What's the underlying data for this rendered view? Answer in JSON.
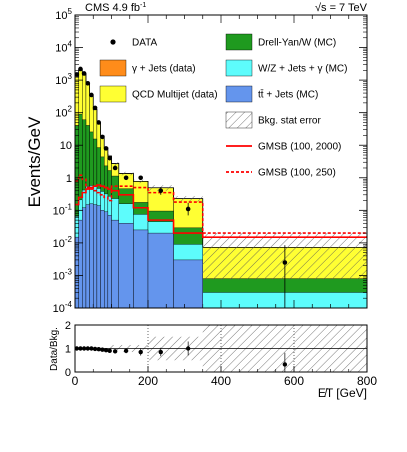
{
  "chart_data": [
    {
      "type": "bar",
      "subtype": "stacked-histogram",
      "title": "",
      "header_left": "CMS 4.9 fb",
      "header_left_sup": "-1",
      "header_right": "√s = 7 TeV",
      "xlabel": "",
      "ylabel": "Events/GeV",
      "xlim": [
        0,
        800
      ],
      "ylim": [
        0.0001,
        100000
      ],
      "yscale": "log",
      "ytick_labels": [
        {
          "base": "10",
          "exp": "-4",
          "value": 0.0001
        },
        {
          "base": "10",
          "exp": "-3",
          "value": 0.001
        },
        {
          "base": "10",
          "exp": "-2",
          "value": 0.01
        },
        {
          "base": "10",
          "exp": "-1",
          "value": 0.1
        },
        {
          "base": "1",
          "exp": "",
          "value": 1
        },
        {
          "base": "10",
          "exp": "",
          "value": 10
        },
        {
          "base": "10",
          "exp": "2",
          "value": 100
        },
        {
          "base": "10",
          "exp": "3",
          "value": 1000
        },
        {
          "base": "10",
          "exp": "4",
          "value": 10000
        },
        {
          "base": "10",
          "exp": "5",
          "value": 100000
        }
      ],
      "bin_edges": [
        0,
        10,
        20,
        30,
        40,
        50,
        60,
        70,
        80,
        90,
        100,
        120,
        160,
        200,
        270,
        350,
        800
      ],
      "stack_order_bottom_to_top": [
        "ttbar",
        "wz",
        "dy",
        "qcd",
        "gjets"
      ],
      "series": [
        {
          "id": "ttbar",
          "name": "tt̄ + Jets (MC)",
          "color": "#6495ed",
          "values": [
            0.015,
            0.05,
            0.12,
            0.15,
            0.16,
            0.15,
            0.14,
            0.1,
            0.09,
            0.07,
            0.05,
            0.04,
            0.025,
            0.02,
            0.003,
            0.0001
          ]
        },
        {
          "id": "wz",
          "name": "W/Z + Jets + γ (MC)",
          "color": "#5dfcfc",
          "values": [
            0.05,
            0.16,
            0.3,
            0.4,
            0.42,
            0.38,
            0.33,
            0.28,
            0.23,
            0.2,
            0.18,
            0.12,
            0.05,
            0.025,
            0.006,
            0.0002
          ]
        },
        {
          "id": "dy",
          "name": "Drell-Yan/W (MC)",
          "color": "#1f9a1f",
          "values": [
            40,
            90,
            60,
            40,
            25,
            15,
            8,
            4,
            2,
            1.4,
            0.9,
            0.3,
            0.1,
            0.05,
            0.02,
            0.0005
          ]
        },
        {
          "id": "qcd",
          "name": "QCD Multijet (data)",
          "color": "#ffff33",
          "values": [
            1200,
            2000,
            1500,
            700,
            300,
            110,
            40,
            15,
            6,
            3,
            1.6,
            0.9,
            0.6,
            0.4,
            0.2,
            0.0065
          ]
        },
        {
          "id": "gjets",
          "name": "γ + Jets (data)",
          "color": "#ff8c1a",
          "values": [
            0,
            0,
            0,
            0,
            0,
            0,
            0,
            0,
            0,
            0,
            0,
            0,
            0,
            0,
            0,
            0
          ]
        }
      ],
      "data_points": {
        "name": "DATA",
        "x": [
          5,
          15,
          25,
          35,
          45,
          55,
          65,
          75,
          85,
          95,
          110,
          140,
          180,
          235,
          310,
          575
        ],
        "y": [
          1500,
          2200,
          1600,
          800,
          350,
          140,
          50,
          18,
          8,
          4,
          2,
          1,
          1,
          0.4,
          0.11,
          0.0025
        ],
        "yerr_low": [
          0,
          0,
          0,
          0,
          0,
          0,
          0,
          0,
          0,
          0,
          0,
          0,
          0,
          0.1,
          0.04,
          0.0024
        ],
        "yerr_high": [
          0,
          0,
          0,
          0,
          0,
          0,
          0,
          0,
          0,
          0,
          0,
          0,
          0,
          0.12,
          0.06,
          0.006
        ]
      },
      "signal_lines": [
        {
          "name": "GMSB (100, 2000)",
          "color": "#ff0000",
          "style": "solid",
          "values": [
            0.15,
            0.25,
            0.35,
            0.45,
            0.5,
            0.55,
            0.6,
            0.55,
            0.5,
            0.45,
            0.4,
            0.3,
            0.12,
            0.05,
            0.02,
            0.015
          ]
        },
        {
          "name": "GMSB (100, 250)",
          "color": "#ff0000",
          "style": "dashed",
          "values": [
            0.8,
            1.2,
            0.9,
            0.5,
            0.45,
            0.4,
            0.35,
            0.3,
            0.25,
            0.2,
            0.55,
            0.55,
            0.5,
            0.35,
            0.18,
            0.02
          ]
        }
      ],
      "legend": [
        {
          "key": "data",
          "label": "DATA",
          "symbol": "dot"
        },
        {
          "key": "dy",
          "label": "Drell-Yan/W (MC)",
          "symbol": "box",
          "color": "#1f9a1f"
        },
        {
          "key": "gjets",
          "label": "γ + Jets (data)",
          "symbol": "box",
          "color": "#ff8c1a"
        },
        {
          "key": "wz",
          "label": "W/Z + Jets + γ (MC)",
          "symbol": "box",
          "color": "#5dfcfc"
        },
        {
          "key": "qcd",
          "label": "QCD Multijet (data)",
          "symbol": "box",
          "color": "#ffff33"
        },
        {
          "key": "ttbar",
          "label": "tt̄ + Jets (MC)",
          "symbol": "box",
          "color": "#6495ed"
        },
        {
          "key": "stat",
          "label": "Bkg. stat error",
          "symbol": "hatch"
        },
        {
          "key": "gmsb2000",
          "label": "GMSB (100, 2000)",
          "symbol": "line",
          "color": "#ff0000"
        },
        {
          "key": "gmsb250",
          "label": "GMSB (100, 250)",
          "symbol": "dashed",
          "color": "#ff0000"
        }
      ],
      "legend_placement": "top-right"
    },
    {
      "type": "scatter",
      "subtype": "ratio",
      "title": "",
      "xlabel": "E̸T [GeV]",
      "ylabel": "Data/Bkg.",
      "xlim": [
        0,
        800
      ],
      "ylim": [
        0,
        2
      ],
      "xtick_labels": [
        "0",
        "200",
        "400",
        "600",
        "800"
      ],
      "ytick_labels": [
        "0",
        "1",
        "2"
      ],
      "reference_line": 1,
      "grid_x": [
        200,
        400,
        600
      ],
      "points": {
        "x": [
          5,
          15,
          25,
          35,
          45,
          55,
          65,
          75,
          85,
          95,
          110,
          140,
          180,
          235,
          310,
          575
        ],
        "y": [
          1.0,
          1.0,
          1.0,
          1.0,
          1.0,
          0.98,
          0.97,
          0.95,
          0.93,
          0.9,
          0.88,
          0.9,
          0.85,
          0.85,
          1.0,
          0.32
        ],
        "yerr": [
          0.02,
          0.02,
          0.02,
          0.02,
          0.02,
          0.03,
          0.04,
          0.05,
          0.06,
          0.07,
          0.08,
          0.1,
          0.15,
          0.18,
          0.3,
          0.5
        ]
      }
    }
  ]
}
